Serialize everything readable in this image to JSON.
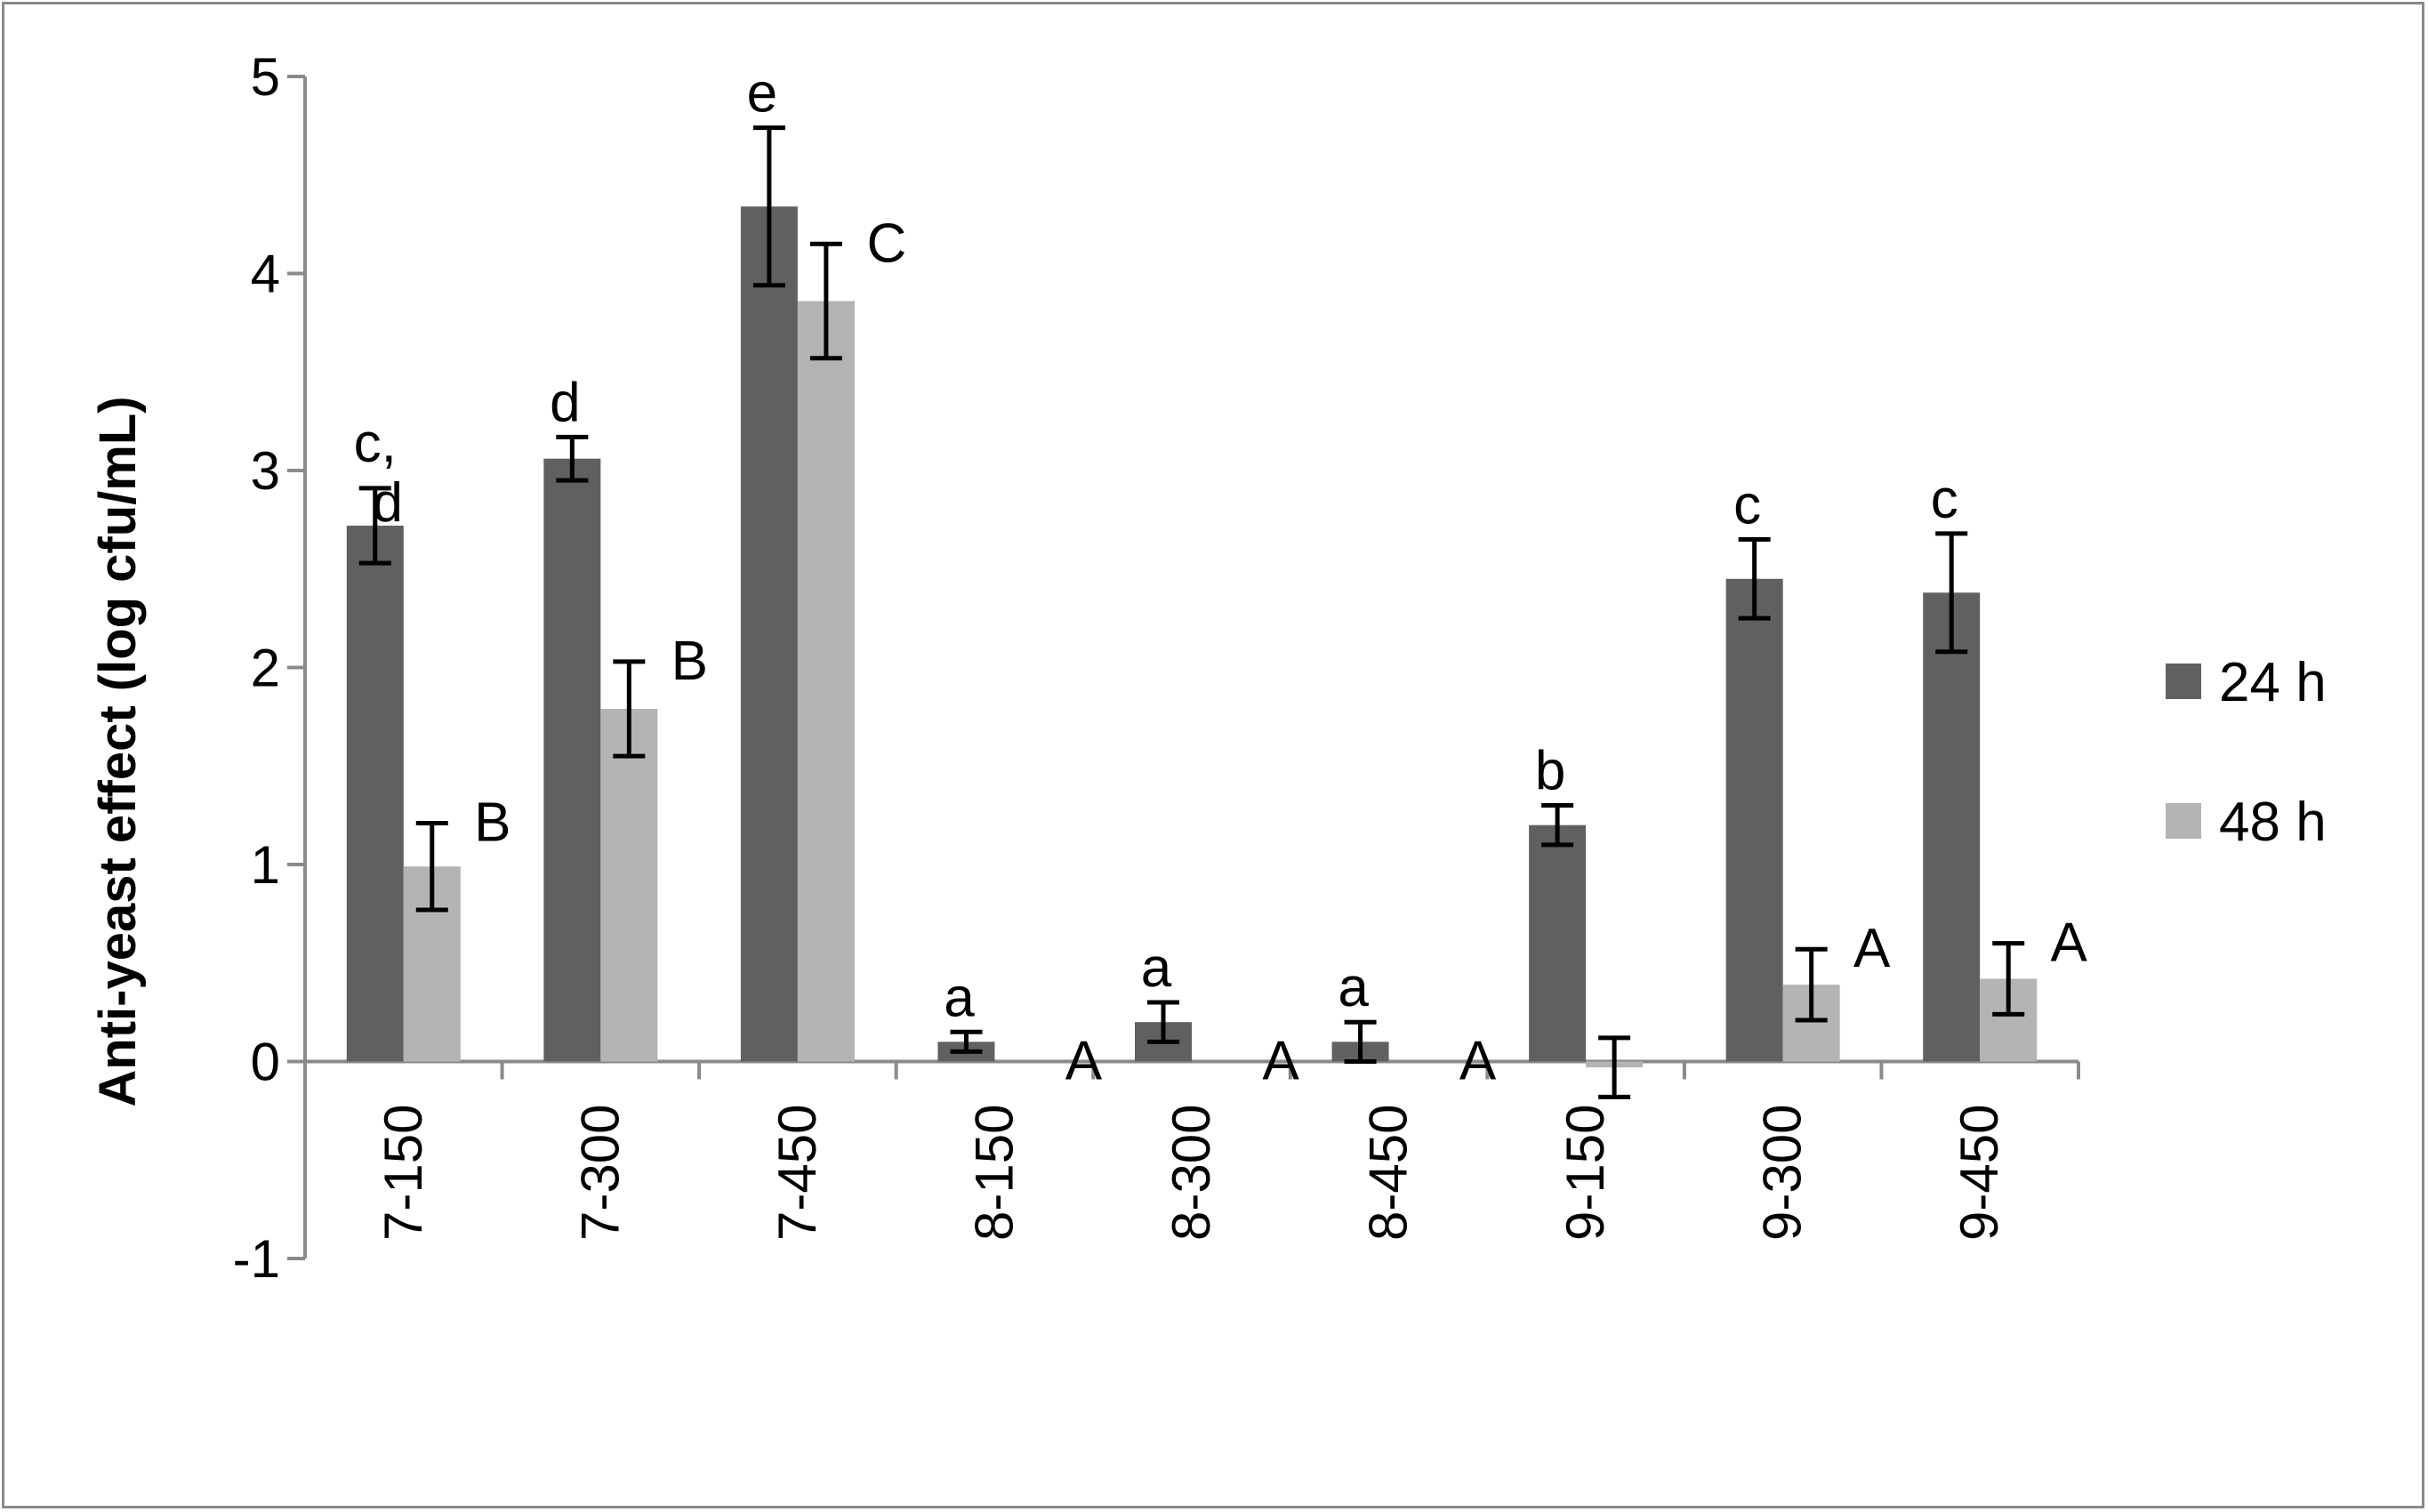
{
  "chart_data": {
    "type": "bar",
    "ylabel": "Anti-yeast effect (log cfu/mL)",
    "ylim": [
      -1,
      5
    ],
    "yticks": [
      "-1",
      "0",
      "1",
      "2",
      "3",
      "4",
      "5"
    ],
    "grid": false,
    "legend_position": "right",
    "categories": [
      "7-150",
      "7-300",
      "7-450",
      "8-150",
      "8-300",
      "8-450",
      "9-150",
      "9-300",
      "9-450"
    ],
    "series": [
      {
        "name": "24 h",
        "color": "#606060",
        "values": [
          2.72,
          3.06,
          4.34,
          0.1,
          0.2,
          0.1,
          1.2,
          2.45,
          2.38
        ],
        "errors": [
          0.19,
          0.11,
          0.4,
          0.05,
          0.1,
          0.1,
          0.1,
          0.2,
          0.3
        ],
        "labels": [
          "c,\nd",
          "d",
          "e",
          "a",
          "a",
          "a",
          "b",
          "c",
          "c"
        ]
      },
      {
        "name": "48 h",
        "color": "#b4b4b4",
        "values": [
          0.99,
          1.79,
          3.86,
          0,
          0,
          0,
          -0.03,
          0.39,
          0.42
        ],
        "errors": [
          0.22,
          0.24,
          0.29,
          0,
          0,
          0,
          0.15,
          0.18,
          0.18
        ],
        "labels": [
          "B",
          "B",
          "C",
          "A",
          "A",
          "A",
          "",
          "A",
          "A"
        ]
      }
    ]
  }
}
